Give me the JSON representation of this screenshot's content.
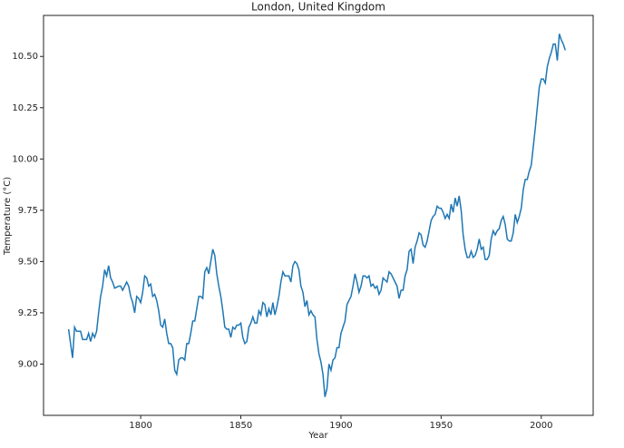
{
  "chart_data": {
    "type": "line",
    "title": "London, United Kingdom",
    "x_label": "Year",
    "y_label": "Temperature (°C)",
    "color": "#1f77b4",
    "x": [
      1764,
      1766,
      1767,
      1768,
      1770,
      1771,
      1773,
      1774,
      1775,
      1776,
      1777,
      1778,
      1779,
      1780,
      1781,
      1782,
      1783,
      1784,
      1785,
      1786,
      1787,
      1789,
      1790,
      1791,
      1792,
      1793,
      1794,
      1795,
      1796,
      1797,
      1798,
      1799,
      1800,
      1801,
      1802,
      1803,
      1804,
      1805,
      1806,
      1807,
      1808,
      1809,
      1810,
      1811,
      1812,
      1813,
      1814,
      1815,
      1816,
      1817,
      1818,
      1819,
      1820,
      1821,
      1822,
      1823,
      1824,
      1825,
      1826,
      1827,
      1828,
      1829,
      1830,
      1831,
      1832,
      1833,
      1834,
      1835,
      1836,
      1837,
      1838,
      1839,
      1840,
      1841,
      1842,
      1843,
      1844,
      1845,
      1846,
      1847,
      1848,
      1849,
      1850,
      1851,
      1852,
      1853,
      1854,
      1855,
      1856,
      1857,
      1858,
      1859,
      1860,
      1861,
      1862,
      1863,
      1864,
      1865,
      1866,
      1867,
      1868,
      1869,
      1870,
      1871,
      1872,
      1873,
      1874,
      1875,
      1876,
      1877,
      1878,
      1879,
      1880,
      1881,
      1882,
      1883,
      1884,
      1885,
      1886,
      1887,
      1888,
      1889,
      1890,
      1891,
      1892,
      1893,
      1894,
      1895,
      1896,
      1897,
      1898,
      1899,
      1900,
      1901,
      1902,
      1903,
      1904,
      1905,
      1906,
      1907,
      1908,
      1909,
      1910,
      1911,
      1912,
      1913,
      1914,
      1915,
      1916,
      1917,
      1918,
      1919,
      1920,
      1921,
      1922,
      1923,
      1924,
      1925,
      1926,
      1927,
      1928,
      1929,
      1930,
      1931,
      1932,
      1933,
      1934,
      1935,
      1936,
      1937,
      1938,
      1939,
      1940,
      1941,
      1942,
      1943,
      1944,
      1945,
      1946,
      1947,
      1948,
      1949,
      1950,
      1951,
      1952,
      1953,
      1954,
      1955,
      1956,
      1957,
      1958,
      1959,
      1960,
      1961,
      1962,
      1963,
      1964,
      1965,
      1966,
      1967,
      1968,
      1969,
      1970,
      1971,
      1972,
      1973,
      1974,
      1975,
      1976,
      1977,
      1978,
      1979,
      1980,
      1981,
      1982,
      1983,
      1984,
      1985,
      1986,
      1987,
      1988,
      1989,
      1990,
      1991,
      1992,
      1993,
      1994,
      1995,
      1996,
      1997,
      1998,
      1999,
      2000,
      2001,
      2002,
      2003,
      2004,
      2005,
      2006,
      2007,
      2008,
      2009,
      2010,
      2011,
      2012
    ],
    "values": [
      9.17,
      9.03,
      9.18,
      9.16,
      9.16,
      9.12,
      9.12,
      9.15,
      9.11,
      9.15,
      9.13,
      9.16,
      9.25,
      9.33,
      9.38,
      9.46,
      9.43,
      9.48,
      9.42,
      9.4,
      9.37,
      9.38,
      9.38,
      9.36,
      9.38,
      9.4,
      9.38,
      9.33,
      9.3,
      9.25,
      9.33,
      9.32,
      9.3,
      9.35,
      9.43,
      9.42,
      9.38,
      9.39,
      9.33,
      9.34,
      9.31,
      9.26,
      9.19,
      9.18,
      9.22,
      9.15,
      9.1,
      9.1,
      9.08,
      8.97,
      8.95,
      9.02,
      9.03,
      9.03,
      9.02,
      9.1,
      9.1,
      9.15,
      9.21,
      9.21,
      9.27,
      9.33,
      9.33,
      9.32,
      9.45,
      9.47,
      9.44,
      9.5,
      9.56,
      9.53,
      9.44,
      9.38,
      9.33,
      9.26,
      9.18,
      9.17,
      9.17,
      9.13,
      9.18,
      9.17,
      9.19,
      9.19,
      9.2,
      9.13,
      9.1,
      9.11,
      9.18,
      9.2,
      9.23,
      9.2,
      9.2,
      9.26,
      9.24,
      9.3,
      9.29,
      9.23,
      9.27,
      9.24,
      9.3,
      9.24,
      9.28,
      9.33,
      9.4,
      9.45,
      9.43,
      9.43,
      9.43,
      9.4,
      9.48,
      9.5,
      9.49,
      9.46,
      9.38,
      9.35,
      9.28,
      9.31,
      9.24,
      9.26,
      9.24,
      9.23,
      9.12,
      9.05,
      9.01,
      8.95,
      8.84,
      8.88,
      9.0,
      8.97,
      9.02,
      9.03,
      9.08,
      9.08,
      9.15,
      9.18,
      9.21,
      9.29,
      9.31,
      9.33,
      9.38,
      9.44,
      9.4,
      9.35,
      9.38,
      9.43,
      9.43,
      9.42,
      9.43,
      9.38,
      9.39,
      9.37,
      9.38,
      9.34,
      9.36,
      9.42,
      9.41,
      9.4,
      9.45,
      9.44,
      9.42,
      9.4,
      9.38,
      9.32,
      9.36,
      9.36,
      9.43,
      9.46,
      9.55,
      9.56,
      9.49,
      9.57,
      9.6,
      9.64,
      9.63,
      9.58,
      9.57,
      9.6,
      9.65,
      9.7,
      9.72,
      9.73,
      9.77,
      9.76,
      9.76,
      9.74,
      9.71,
      9.73,
      9.71,
      9.78,
      9.74,
      9.81,
      9.77,
      9.82,
      9.75,
      9.63,
      9.56,
      9.52,
      9.52,
      9.55,
      9.52,
      9.53,
      9.56,
      9.61,
      9.56,
      9.57,
      9.51,
      9.51,
      9.53,
      9.61,
      9.65,
      9.63,
      9.65,
      9.66,
      9.7,
      9.72,
      9.68,
      9.61,
      9.6,
      9.6,
      9.64,
      9.73,
      9.69,
      9.72,
      9.76,
      9.85,
      9.9,
      9.9,
      9.94,
      9.97,
      10.06,
      10.15,
      10.25,
      10.35,
      10.39,
      10.39,
      10.37,
      10.45,
      10.49,
      10.52,
      10.56,
      10.56,
      10.48,
      10.61,
      10.58,
      10.56,
      10.53
    ],
    "xlim": [
      1751.5,
      2025.9
    ],
    "ylim": [
      8.75,
      10.7
    ],
    "xticks": [
      1800,
      1850,
      1900,
      1950,
      2000
    ],
    "yticks": [
      {
        "value": 9,
        "label": "9.00"
      },
      9.25,
      {
        "value": 9.5,
        "label": "9.50"
      },
      9.75,
      {
        "value": 10,
        "label": "10.00"
      },
      10.25,
      {
        "value": 10.5,
        "label": "10.50"
      }
    ]
  }
}
